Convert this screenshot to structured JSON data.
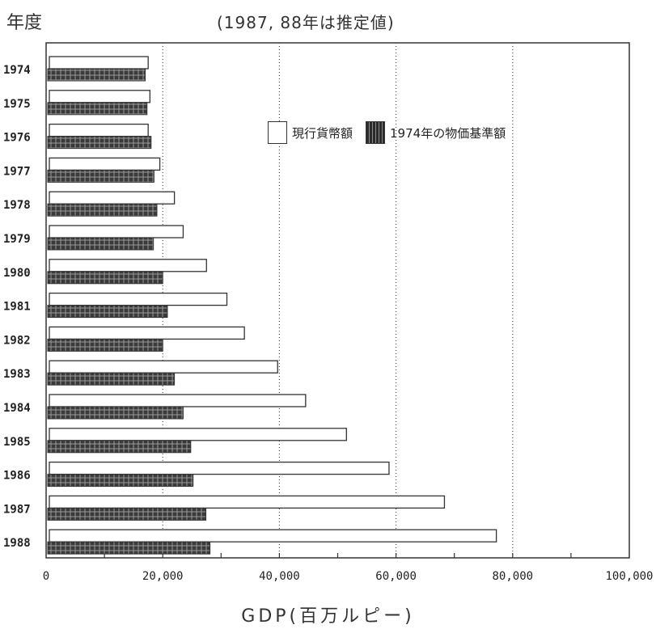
{
  "header": {
    "ylabel": "年度",
    "subtitle": "(1987, 88年は推定値)"
  },
  "xlabel": "GDP(百万ルピー)",
  "legend": {
    "current": "現行貨幣額",
    "real": "1974年の物価基準額"
  },
  "colors": {
    "bar_fill_current": "#ffffff",
    "bar_fill_real": "#3a3a3a",
    "outline": "#333333",
    "gridline": "#555555"
  },
  "chart_data": {
    "type": "bar",
    "orientation": "horizontal",
    "categories": [
      "1974",
      "1975",
      "1976",
      "1977",
      "1978",
      "1979",
      "1980",
      "1981",
      "1982",
      "1983",
      "1984",
      "1985",
      "1986",
      "1987",
      "1988"
    ],
    "series": [
      {
        "name": "現行貨幣額",
        "values": [
          17500,
          17800,
          17500,
          19500,
          22000,
          23500,
          27500,
          31000,
          34000,
          39700,
          44500,
          51500,
          58800,
          68300,
          77200
        ]
      },
      {
        "name": "1974年の物価基準額",
        "values": [
          17000,
          17300,
          18000,
          18500,
          19000,
          18400,
          20000,
          20800,
          20000,
          22000,
          23500,
          24800,
          25200,
          27400,
          28100
        ]
      }
    ],
    "xlim": [
      0,
      100000
    ],
    "xticks": [
      "0",
      "20,000",
      "40,000",
      "60,000",
      "80,000",
      "100,000"
    ],
    "grid_values": [
      20000,
      40000,
      60000,
      80000
    ],
    "grid": true,
    "legend_position": "top-right"
  }
}
